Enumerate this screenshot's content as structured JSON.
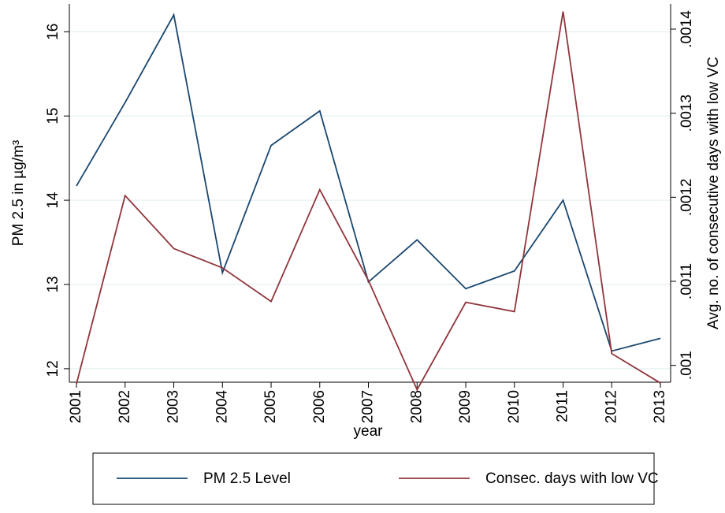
{
  "chart_data": {
    "type": "line",
    "x": [
      2001,
      2002,
      2003,
      2004,
      2005,
      2006,
      2007,
      2008,
      2009,
      2010,
      2011,
      2012,
      2013
    ],
    "xlim": [
      2000.854,
      2013.21
    ],
    "xticks": [
      2001,
      2002,
      2003,
      2004,
      2005,
      2006,
      2007,
      2008,
      2009,
      2010,
      2011,
      2012,
      2013
    ],
    "ylim": [
      11.84,
      16.33
    ],
    "yticks": [
      12,
      13,
      14,
      15,
      16
    ],
    "y2lim": [
      0.00098,
      0.00143
    ],
    "y2ticks": [
      {
        "value": 0.001,
        "label": ".001"
      },
      {
        "value": 0.0011,
        "label": ".0011"
      },
      {
        "value": 0.0012,
        "label": ".0012"
      },
      {
        "value": 0.0013,
        "label": ".0013"
      },
      {
        "value": 0.0014,
        "label": ".0014"
      }
    ],
    "xlabel": "year",
    "ylabel": "PM 2.5 in µg/m³",
    "y2label": "Avg. no. of consecutive days with low VC",
    "grid": true,
    "legend": "bottom",
    "series": [
      {
        "name": "PM 2.5 Level",
        "color": "#1a476f",
        "values": [
          14.17,
          15.16,
          16.2,
          13.14,
          14.65,
          15.06,
          13.03,
          13.53,
          12.95,
          13.16,
          14.0,
          12.21,
          12.36
        ]
      },
      {
        "name": "Consec. days with low VC",
        "color": "#90353b",
        "axis": "y2",
        "values": [
          0.000978,
          0.001202,
          0.001139,
          0.001116,
          0.001076,
          0.001209,
          0.001101,
          0.000971,
          0.001075,
          0.001064,
          0.001421,
          0.001014,
          0.000979
        ]
      }
    ]
  }
}
